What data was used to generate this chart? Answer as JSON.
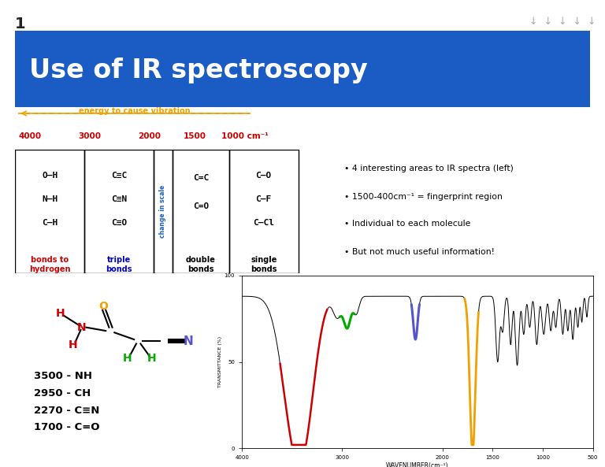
{
  "title": "Use of IR spectroscopy",
  "slide_number": "1",
  "bg_color": "#ffffff",
  "header_bg": "#1a5bc4",
  "header_text_color": "#ffffff",
  "arrow_color": "#f0a000",
  "energy_label": "energy to cause vibration",
  "energy_label_color": "#f0a000",
  "wavenumber_color": "#cc0000",
  "table_col1_entries": [
    "O—H",
    "N—H",
    "C—H"
  ],
  "table_col1_header": "bonds to\nhydrogen",
  "table_col1_color": "#cc0000",
  "table_col2_entries": [
    "C≡C",
    "C≡N",
    "C≡O"
  ],
  "table_col2_header": "triple\nbonds",
  "table_col2_color": "#0000cc",
  "table_col3_label": "change in scale",
  "table_col4_entries": [
    "C=C",
    "C=O"
  ],
  "table_col4_header": "double\nbonds",
  "table_col5_entries": [
    "C—O",
    "C—F",
    "C—Cl"
  ],
  "table_col5_header": "single\nbonds",
  "bullets": [
    "4 interesting areas to IR spectra (left)",
    "1500-400cm⁻¹ = fingerprint region",
    "Individual to each molecule",
    "But not much useful information!"
  ],
  "molecule_labels": [
    "3500 - NH",
    "2950 - CH",
    "2270 - C≡N",
    "1700 - C=O"
  ],
  "nh_color": "#cc0000",
  "ch_color": "#00aa00",
  "cn_color": "#5555cc",
  "co_color": "#f0a000",
  "down_arrows_color": "#aaaaaa"
}
